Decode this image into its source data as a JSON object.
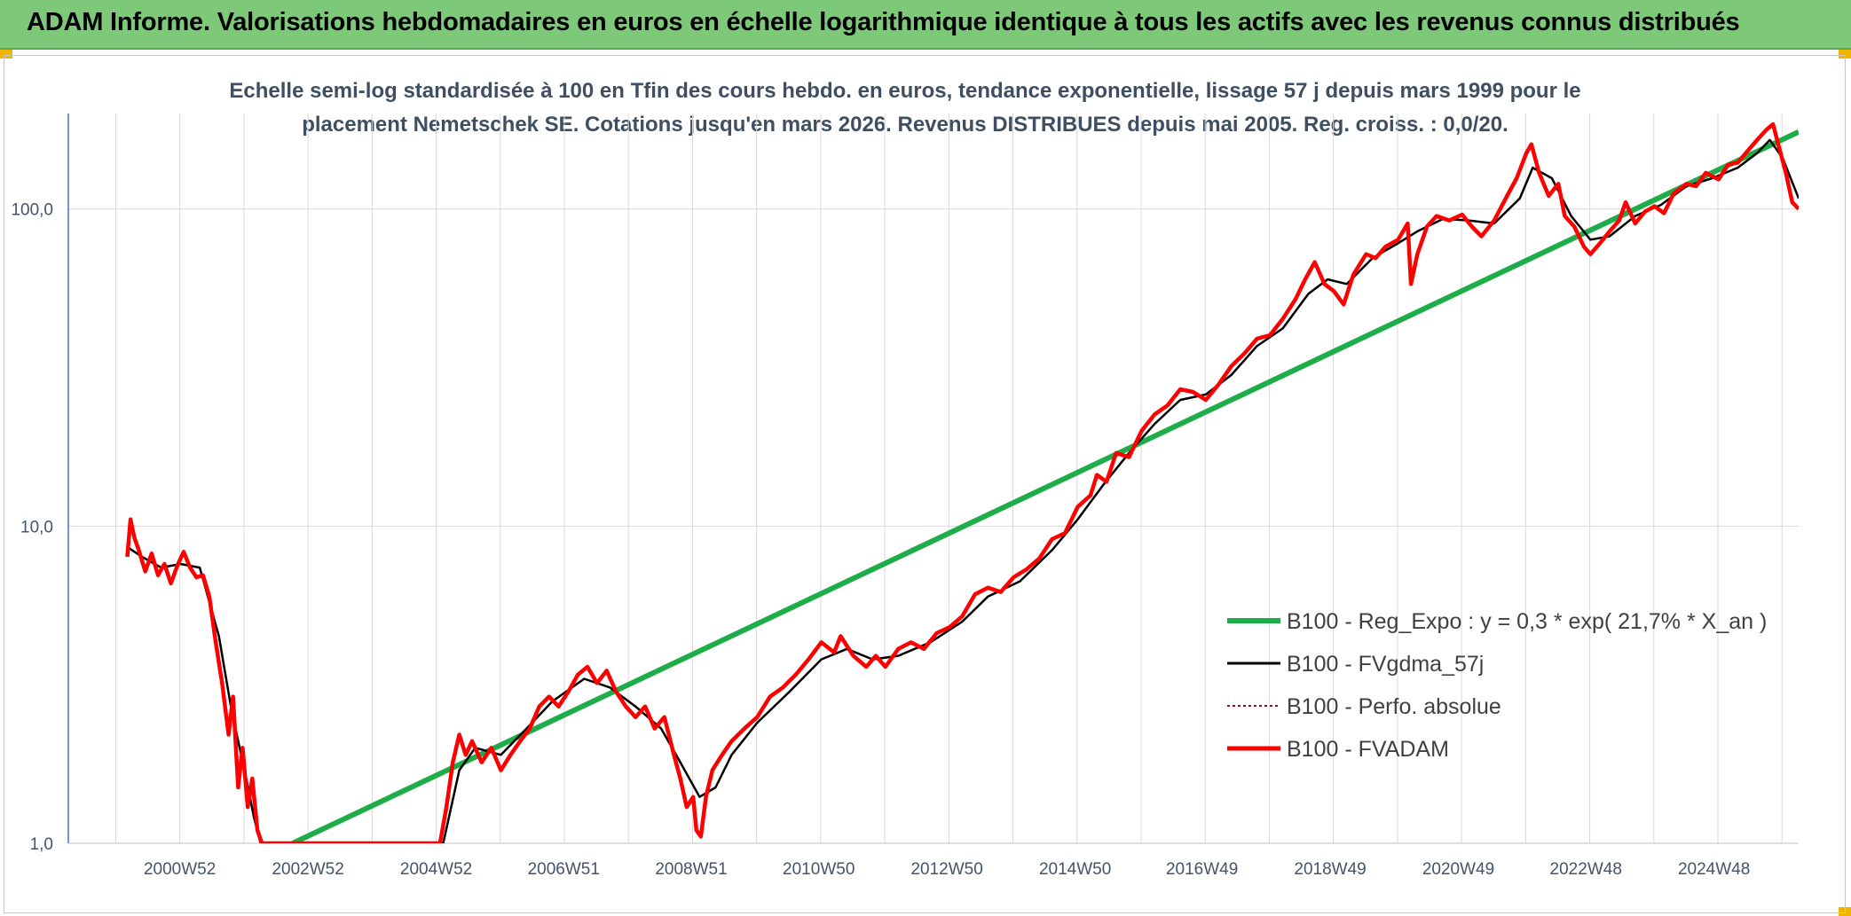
{
  "header": {
    "title": "ADAM Informe. Valorisations hebdomadaires en euros en échelle logarithmique identique à tous les actifs avec les revenus connus distribués"
  },
  "chart_data": {
    "type": "line",
    "subtitle_line1": "Echelle semi-log standardisée à 100 en Tfin des cours hebdo. en euros, tendance exponentielle, lissage 57 j depuis mars 1999 pour le",
    "subtitle_line2": "placement Nemetschek SE. Cotations jusqu'en mars 2026. Revenus DISTRIBUES depuis mai 2005. Reg. croiss. : 0,0/20.",
    "y_scale": "log",
    "ylim": [
      1,
      200
    ],
    "xlim": [
      1999.25,
      2026.25
    ],
    "y_ticks": [
      {
        "value": 1,
        "label": "1,0"
      },
      {
        "value": 10,
        "label": "10,0"
      },
      {
        "value": 100,
        "label": "100,0"
      }
    ],
    "x_ticks": [
      {
        "value": 2000.99,
        "label": "2000W52"
      },
      {
        "value": 2002.99,
        "label": "2002W52"
      },
      {
        "value": 2004.99,
        "label": "2004W52"
      },
      {
        "value": 2006.98,
        "label": "2006W51"
      },
      {
        "value": 2008.97,
        "label": "2008W51"
      },
      {
        "value": 2010.96,
        "label": "2010W50"
      },
      {
        "value": 2012.96,
        "label": "2012W50"
      },
      {
        "value": 2014.96,
        "label": "2014W50"
      },
      {
        "value": 2016.94,
        "label": "2016W49"
      },
      {
        "value": 2018.94,
        "label": "2018W49"
      },
      {
        "value": 2020.94,
        "label": "2020W49"
      },
      {
        "value": 2022.93,
        "label": "2022W48"
      },
      {
        "value": 2024.93,
        "label": "2024W48"
      }
    ],
    "grid": true,
    "legend_position": "lower-right",
    "series": [
      {
        "name": "B100 - Reg_Expo : y = 0,3 * exp( 21,7% *  X_an )",
        "color": "#1fad4a",
        "style": "solid",
        "points": [
          [
            2002.75,
            1.0
          ],
          [
            2026.25,
            175
          ]
        ]
      },
      {
        "name": "B100 - FVgdma_57j",
        "color": "#000000",
        "style": "solid",
        "points": [
          [
            2000.17,
            8.6
          ],
          [
            2000.4,
            8.0
          ],
          [
            2000.7,
            7.4
          ],
          [
            2001.0,
            7.6
          ],
          [
            2001.3,
            7.4
          ],
          [
            2001.6,
            4.5
          ],
          [
            2001.8,
            2.6
          ],
          [
            2002.0,
            1.7
          ],
          [
            2002.15,
            1.2
          ],
          [
            2002.25,
            1.0
          ],
          [
            2005.1,
            1.0
          ],
          [
            2005.35,
            1.7
          ],
          [
            2005.6,
            2.0
          ],
          [
            2006.0,
            1.9
          ],
          [
            2006.4,
            2.3
          ],
          [
            2006.8,
            2.8
          ],
          [
            2007.3,
            3.3
          ],
          [
            2007.7,
            3.1
          ],
          [
            2008.1,
            2.7
          ],
          [
            2008.5,
            2.3
          ],
          [
            2008.8,
            1.8
          ],
          [
            2009.1,
            1.4
          ],
          [
            2009.35,
            1.5
          ],
          [
            2009.6,
            1.9
          ],
          [
            2010.0,
            2.4
          ],
          [
            2010.5,
            3.0
          ],
          [
            2011.0,
            3.8
          ],
          [
            2011.4,
            4.1
          ],
          [
            2011.8,
            3.8
          ],
          [
            2012.2,
            3.9
          ],
          [
            2012.7,
            4.3
          ],
          [
            2013.2,
            5.0
          ],
          [
            2013.6,
            6.0
          ],
          [
            2014.1,
            6.7
          ],
          [
            2014.6,
            8.4
          ],
          [
            2015.0,
            10.5
          ],
          [
            2015.4,
            13.5
          ],
          [
            2015.8,
            17.0
          ],
          [
            2016.2,
            21.0
          ],
          [
            2016.6,
            25.0
          ],
          [
            2017.0,
            26.0
          ],
          [
            2017.4,
            30.0
          ],
          [
            2017.8,
            37.0
          ],
          [
            2018.2,
            42.0
          ],
          [
            2018.6,
            54.0
          ],
          [
            2018.9,
            60.0
          ],
          [
            2019.2,
            58.0
          ],
          [
            2019.6,
            70.0
          ],
          [
            2020.0,
            78.0
          ],
          [
            2020.3,
            85.0
          ],
          [
            2020.7,
            93.0
          ],
          [
            2021.1,
            92.0
          ],
          [
            2021.5,
            90.0
          ],
          [
            2021.9,
            108.0
          ],
          [
            2022.1,
            135.0
          ],
          [
            2022.4,
            125.0
          ],
          [
            2022.7,
            95.0
          ],
          [
            2023.0,
            80.0
          ],
          [
            2023.3,
            82.0
          ],
          [
            2023.7,
            95.0
          ],
          [
            2024.1,
            103.0
          ],
          [
            2024.5,
            118.0
          ],
          [
            2024.9,
            125.0
          ],
          [
            2025.3,
            135.0
          ],
          [
            2025.6,
            150.0
          ],
          [
            2025.8,
            165.0
          ],
          [
            2026.0,
            145.0
          ],
          [
            2026.25,
            108.0
          ]
        ]
      },
      {
        "name": "B100 - Perfo. absolue",
        "color": "#c00000",
        "style": "dotted",
        "points": []
      },
      {
        "name": "B100 - FVADAM",
        "color": "#ff0000",
        "style": "solid",
        "points": [
          [
            2000.17,
            8.0
          ],
          [
            2000.22,
            10.5
          ],
          [
            2000.28,
            9.2
          ],
          [
            2000.35,
            8.4
          ],
          [
            2000.45,
            7.2
          ],
          [
            2000.55,
            8.2
          ],
          [
            2000.65,
            7.0
          ],
          [
            2000.75,
            7.6
          ],
          [
            2000.85,
            6.6
          ],
          [
            2000.95,
            7.5
          ],
          [
            2001.05,
            8.3
          ],
          [
            2001.15,
            7.4
          ],
          [
            2001.25,
            6.9
          ],
          [
            2001.35,
            7.0
          ],
          [
            2001.45,
            6.0
          ],
          [
            2001.55,
            4.3
          ],
          [
            2001.65,
            3.2
          ],
          [
            2001.75,
            2.2
          ],
          [
            2001.82,
            2.9
          ],
          [
            2001.9,
            1.5
          ],
          [
            2001.97,
            2.0
          ],
          [
            2002.05,
            1.3
          ],
          [
            2002.12,
            1.6
          ],
          [
            2002.2,
            1.1
          ],
          [
            2002.27,
            1.0
          ],
          [
            2005.05,
            1.0
          ],
          [
            2005.15,
            1.3
          ],
          [
            2005.25,
            1.8
          ],
          [
            2005.35,
            2.2
          ],
          [
            2005.45,
            1.9
          ],
          [
            2005.55,
            2.1
          ],
          [
            2005.7,
            1.8
          ],
          [
            2005.85,
            2.0
          ],
          [
            2006.0,
            1.7
          ],
          [
            2006.15,
            1.9
          ],
          [
            2006.3,
            2.1
          ],
          [
            2006.45,
            2.3
          ],
          [
            2006.6,
            2.7
          ],
          [
            2006.75,
            2.9
          ],
          [
            2006.9,
            2.7
          ],
          [
            2007.05,
            3.0
          ],
          [
            2007.2,
            3.4
          ],
          [
            2007.35,
            3.6
          ],
          [
            2007.5,
            3.2
          ],
          [
            2007.65,
            3.5
          ],
          [
            2007.8,
            3.0
          ],
          [
            2007.95,
            2.7
          ],
          [
            2008.1,
            2.5
          ],
          [
            2008.25,
            2.7
          ],
          [
            2008.4,
            2.3
          ],
          [
            2008.55,
            2.5
          ],
          [
            2008.7,
            1.9
          ],
          [
            2008.8,
            1.6
          ],
          [
            2008.9,
            1.3
          ],
          [
            2009.0,
            1.4
          ],
          [
            2009.05,
            1.1
          ],
          [
            2009.12,
            1.05
          ],
          [
            2009.2,
            1.4
          ],
          [
            2009.3,
            1.7
          ],
          [
            2009.45,
            1.9
          ],
          [
            2009.6,
            2.1
          ],
          [
            2009.8,
            2.3
          ],
          [
            2010.0,
            2.5
          ],
          [
            2010.2,
            2.9
          ],
          [
            2010.4,
            3.1
          ],
          [
            2010.6,
            3.4
          ],
          [
            2010.8,
            3.8
          ],
          [
            2011.0,
            4.3
          ],
          [
            2011.2,
            4.0
          ],
          [
            2011.3,
            4.5
          ],
          [
            2011.5,
            3.9
          ],
          [
            2011.7,
            3.6
          ],
          [
            2011.85,
            3.9
          ],
          [
            2012.0,
            3.6
          ],
          [
            2012.2,
            4.1
          ],
          [
            2012.4,
            4.3
          ],
          [
            2012.6,
            4.1
          ],
          [
            2012.8,
            4.6
          ],
          [
            2013.0,
            4.8
          ],
          [
            2013.2,
            5.2
          ],
          [
            2013.4,
            6.1
          ],
          [
            2013.6,
            6.4
          ],
          [
            2013.8,
            6.2
          ],
          [
            2014.0,
            6.9
          ],
          [
            2014.2,
            7.3
          ],
          [
            2014.4,
            7.9
          ],
          [
            2014.6,
            9.1
          ],
          [
            2014.8,
            9.5
          ],
          [
            2015.0,
            11.5
          ],
          [
            2015.2,
            12.5
          ],
          [
            2015.3,
            14.5
          ],
          [
            2015.45,
            13.8
          ],
          [
            2015.6,
            17.0
          ],
          [
            2015.8,
            16.5
          ],
          [
            2016.0,
            20.0
          ],
          [
            2016.2,
            22.5
          ],
          [
            2016.4,
            24.0
          ],
          [
            2016.6,
            27.0
          ],
          [
            2016.8,
            26.5
          ],
          [
            2017.0,
            25.0
          ],
          [
            2017.2,
            28.0
          ],
          [
            2017.4,
            32.0
          ],
          [
            2017.6,
            35.0
          ],
          [
            2017.8,
            39.0
          ],
          [
            2018.0,
            40.0
          ],
          [
            2018.2,
            45.0
          ],
          [
            2018.4,
            52.0
          ],
          [
            2018.55,
            60.0
          ],
          [
            2018.7,
            68.0
          ],
          [
            2018.85,
            58.0
          ],
          [
            2019.0,
            55.0
          ],
          [
            2019.15,
            50.0
          ],
          [
            2019.3,
            62.0
          ],
          [
            2019.5,
            72.0
          ],
          [
            2019.65,
            70.0
          ],
          [
            2019.8,
            76.0
          ],
          [
            2020.0,
            80.0
          ],
          [
            2020.15,
            90.0
          ],
          [
            2020.2,
            58.0
          ],
          [
            2020.3,
            72.0
          ],
          [
            2020.45,
            88.0
          ],
          [
            2020.6,
            95.0
          ],
          [
            2020.8,
            92.0
          ],
          [
            2021.0,
            96.0
          ],
          [
            2021.15,
            88.0
          ],
          [
            2021.3,
            82.0
          ],
          [
            2021.5,
            92.0
          ],
          [
            2021.7,
            110.0
          ],
          [
            2021.85,
            125.0
          ],
          [
            2022.0,
            150.0
          ],
          [
            2022.08,
            160.0
          ],
          [
            2022.2,
            130.0
          ],
          [
            2022.35,
            110.0
          ],
          [
            2022.5,
            120.0
          ],
          [
            2022.6,
            95.0
          ],
          [
            2022.75,
            88.0
          ],
          [
            2022.9,
            76.0
          ],
          [
            2023.0,
            72.0
          ],
          [
            2023.15,
            78.0
          ],
          [
            2023.3,
            85.0
          ],
          [
            2023.45,
            92.0
          ],
          [
            2023.55,
            105.0
          ],
          [
            2023.7,
            90.0
          ],
          [
            2023.85,
            98.0
          ],
          [
            2024.0,
            102.0
          ],
          [
            2024.15,
            97.0
          ],
          [
            2024.3,
            112.0
          ],
          [
            2024.5,
            120.0
          ],
          [
            2024.65,
            118.0
          ],
          [
            2024.8,
            130.0
          ],
          [
            2025.0,
            124.0
          ],
          [
            2025.15,
            138.0
          ],
          [
            2025.3,
            140.0
          ],
          [
            2025.45,
            152.0
          ],
          [
            2025.6,
            165.0
          ],
          [
            2025.75,
            178.0
          ],
          [
            2025.85,
            185.0
          ],
          [
            2025.95,
            155.0
          ],
          [
            2026.05,
            130.0
          ],
          [
            2026.15,
            105.0
          ],
          [
            2026.25,
            100.0
          ]
        ]
      }
    ]
  }
}
